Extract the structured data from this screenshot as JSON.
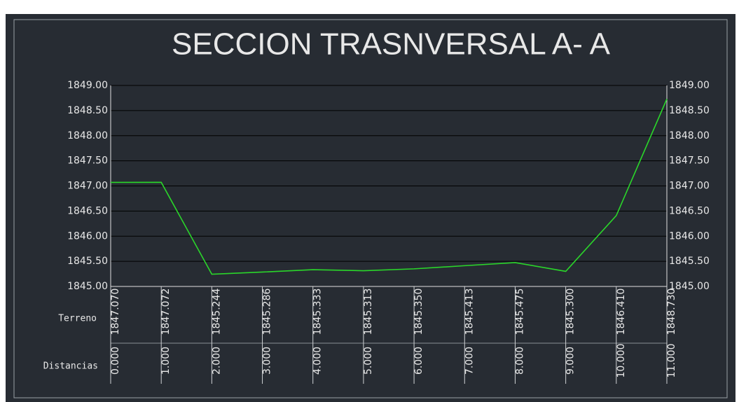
{
  "chart_data": {
    "type": "line",
    "title": "SECCION TRASNVERSAL A- A",
    "xlabel": "Distancias",
    "x": [
      0,
      1,
      2,
      3,
      4,
      5,
      6,
      7,
      8,
      9,
      10,
      11
    ],
    "xlim": [
      0,
      11
    ],
    "xticks": [
      {
        "value": 0,
        "label": "0.000"
      },
      {
        "value": 1,
        "label": "1.000"
      },
      {
        "value": 2,
        "label": "2.000"
      },
      {
        "value": 3,
        "label": "3.000"
      },
      {
        "value": 4,
        "label": "4.000"
      },
      {
        "value": 5,
        "label": "5.000"
      },
      {
        "value": 6,
        "label": "6.000"
      },
      {
        "value": 7,
        "label": "7.000"
      },
      {
        "value": 8,
        "label": "8.000"
      },
      {
        "value": 9,
        "label": "9.000"
      },
      {
        "value": 10,
        "label": "10.000"
      },
      {
        "value": 11,
        "label": "11.000"
      }
    ],
    "series": [
      {
        "name": "Terreno",
        "color": "#2ad62a",
        "values": [
          1847.07,
          1847.072,
          1845.244,
          1845.286,
          1845.333,
          1845.313,
          1845.35,
          1845.413,
          1845.475,
          1845.3,
          1846.41,
          1848.73
        ],
        "value_labels": [
          "1847.070",
          "1847.072",
          "1845.244",
          "1845.286",
          "1845.333",
          "1845.313",
          "1845.350",
          "1845.413",
          "1845.475",
          "1845.300",
          "1846.410",
          "1848.730"
        ]
      }
    ],
    "ylim": [
      1845,
      1849
    ],
    "yticks": [
      {
        "value": 1845,
        "label": "1845.00"
      },
      {
        "value": 1845.5,
        "label": "1845.50"
      },
      {
        "value": 1846,
        "label": "1846.00"
      },
      {
        "value": 1846.5,
        "label": "1846.50"
      },
      {
        "value": 1847,
        "label": "1847.00"
      },
      {
        "value": 1847.5,
        "label": "1847.50"
      },
      {
        "value": 1848,
        "label": "1848.00"
      },
      {
        "value": 1848.5,
        "label": "1848.50"
      },
      {
        "value": 1849,
        "label": "1849.00"
      }
    ],
    "grid": true
  }
}
